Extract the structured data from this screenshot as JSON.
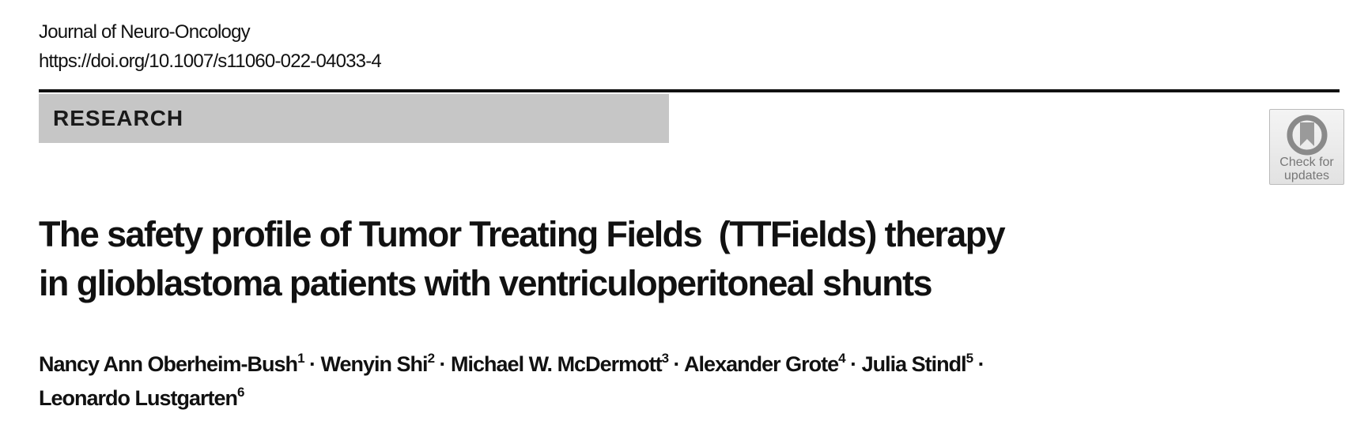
{
  "journal": "Journal of Neuro-Oncology",
  "doi": "https://doi.org/10.1007/s11060-022-04033-4",
  "section": "RESEARCH",
  "badge": {
    "line1": "Check for",
    "line2": "updates",
    "icon": "bookmark-circle-icon"
  },
  "title": {
    "line1": "The safety profile of Tumor Treating Fields  (TTFields) therapy",
    "line2": "in glioblastoma patients with ventriculoperitoneal shunts"
  },
  "authors": [
    {
      "name": "Nancy Ann Oberheim-Bush",
      "aff": "1"
    },
    {
      "name": "Wenyin Shi",
      "aff": "2"
    },
    {
      "name": "Michael W. McDermott",
      "aff": "3"
    },
    {
      "name": "Alexander Grote",
      "aff": "4"
    },
    {
      "name": "Julia Stindl",
      "aff": "5"
    },
    {
      "name": "Leonardo Lustgarten",
      "aff": "6"
    }
  ],
  "separator": " · "
}
